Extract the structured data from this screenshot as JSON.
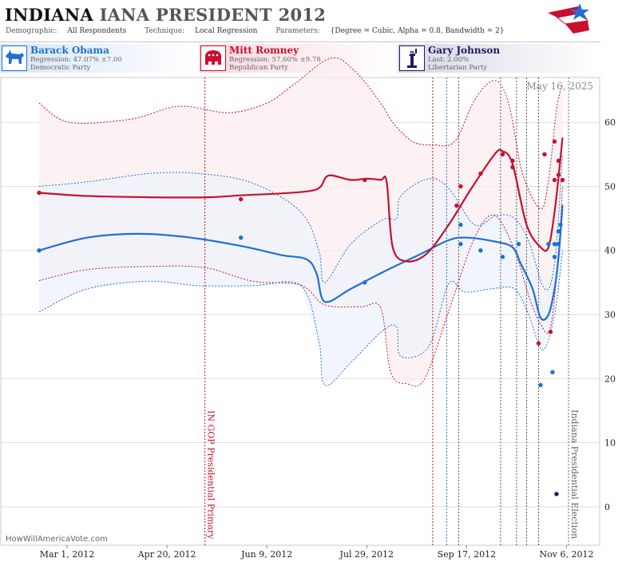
{
  "header": {
    "title_state": "INDIANA",
    "title_race": "IANA PRESIDENT 2012",
    "demographic_label": "Demographic:",
    "demographic_value": "All Respondents",
    "technique_label": "Technique:",
    "technique_value": "Local Regression",
    "parameters_label": "Parameters:",
    "parameters_value": "{Degree = Cubic, Alpha = 0.8, Bandwidth = 2}"
  },
  "candidates": [
    {
      "name": "Barack Obama",
      "line1": "Regression: 47.07% ±7.00",
      "line2": "Democratic Party",
      "color": "#1f6fd6",
      "icon": "donkey-icon"
    },
    {
      "name": "Mitt Romney",
      "line1": "Regression: 57.60% ±9.78",
      "line2": "Republican Party",
      "color": "#c8102e",
      "icon": "elephant-icon"
    },
    {
      "name": "Gary Johnson",
      "line1": "Last: 2.00%",
      "line2": "Libertarian Party",
      "color": "#1b1b5e",
      "icon": "statue-of-liberty-icon"
    }
  ],
  "chart_data": {
    "type": "line",
    "date_label": "May 16, 2025",
    "watermark": "HowWillAmericaVote.com",
    "x_ticks": [
      "Mar 1, 2012",
      "Apr 20, 2012",
      "Jun 9, 2012",
      "Jul 29, 2012",
      "Sep 17, 2012",
      "Nov 6, 2012"
    ],
    "x_range": [
      "2012-02-01",
      "2012-11-12"
    ],
    "y_ticks": [
      0,
      10,
      20,
      30,
      40,
      50,
      60
    ],
    "ylim": [
      -6,
      67
    ],
    "grid": true,
    "annotations": [
      {
        "date": "2012-05-08",
        "text": "IN GOP Presidential Primary",
        "color": "#c8102e"
      },
      {
        "date": "2012-11-06",
        "text": "Indiana Presidential Election",
        "color": "#666666"
      }
    ],
    "event_lines": [
      {
        "date": "2012-08-30",
        "color": "#c8102e"
      },
      {
        "date": "2012-09-06",
        "color": "#1f6fd6"
      },
      {
        "date": "2012-09-12",
        "color": "#555555"
      },
      {
        "date": "2012-10-03",
        "color": "#555555"
      },
      {
        "date": "2012-10-11",
        "color": "#555555"
      },
      {
        "date": "2012-10-16",
        "color": "#555555"
      },
      {
        "date": "2012-10-22",
        "color": "#555555"
      }
    ],
    "series": [
      {
        "name": "Barack Obama",
        "color": "#1f6fd6",
        "fill": "#eef3fb",
        "points": [
          [
            "2012-02-15",
            40
          ],
          [
            "2012-05-26",
            42
          ],
          [
            "2012-07-27",
            35
          ],
          [
            "2012-09-13",
            44
          ],
          [
            "2012-09-13",
            41
          ],
          [
            "2012-09-23",
            40
          ],
          [
            "2012-10-04",
            39
          ],
          [
            "2012-10-12",
            41
          ],
          [
            "2012-10-23",
            19
          ],
          [
            "2012-10-27",
            41
          ],
          [
            "2012-10-29",
            21
          ],
          [
            "2012-10-30",
            39
          ],
          [
            "2012-10-30",
            41
          ],
          [
            "2012-11-01",
            41
          ],
          [
            "2012-11-01",
            43
          ],
          [
            "2012-11-02",
            44
          ]
        ],
        "fit": [
          [
            "2012-02-15",
            40
          ],
          [
            "2012-03-10",
            42
          ],
          [
            "2012-04-05",
            42.6
          ],
          [
            "2012-05-01",
            42
          ],
          [
            "2012-05-26",
            40.7
          ],
          [
            "2012-06-15",
            39.3
          ],
          [
            "2012-06-28",
            38.6
          ],
          [
            "2012-07-03",
            36.3
          ],
          [
            "2012-07-07",
            32
          ],
          [
            "2012-07-20",
            34
          ],
          [
            "2012-08-05",
            36.6
          ],
          [
            "2012-08-23",
            39.3
          ],
          [
            "2012-09-07",
            41.6
          ],
          [
            "2012-09-16",
            42
          ],
          [
            "2012-09-30",
            41.4
          ],
          [
            "2012-10-09",
            40.5
          ],
          [
            "2012-10-13",
            38
          ],
          [
            "2012-10-19",
            34
          ],
          [
            "2012-10-23",
            29.5
          ],
          [
            "2012-10-27",
            30
          ],
          [
            "2012-10-30",
            34
          ],
          [
            "2012-11-01",
            39
          ],
          [
            "2012-11-03",
            47.1
          ]
        ],
        "upper": [
          [
            "2012-02-15",
            50
          ],
          [
            "2012-03-10",
            50.7
          ],
          [
            "2012-04-10",
            52
          ],
          [
            "2012-05-05",
            52
          ],
          [
            "2012-06-01",
            50.5
          ],
          [
            "2012-06-25",
            46
          ],
          [
            "2012-07-04",
            40
          ],
          [
            "2012-07-07",
            35
          ],
          [
            "2012-07-20",
            41
          ],
          [
            "2012-08-05",
            44.8
          ],
          [
            "2012-08-12",
            45
          ],
          [
            "2012-08-14",
            48.5
          ],
          [
            "2012-08-28",
            51.2
          ],
          [
            "2012-09-07",
            49.7
          ],
          [
            "2012-09-20",
            44
          ],
          [
            "2012-10-01",
            45.5
          ],
          [
            "2012-10-10",
            45
          ],
          [
            "2012-10-17",
            41.5
          ],
          [
            "2012-10-25",
            34
          ],
          [
            "2012-10-30",
            38
          ],
          [
            "2012-11-03",
            55
          ]
        ],
        "lower": [
          [
            "2012-02-15",
            30.4
          ],
          [
            "2012-03-10",
            34
          ],
          [
            "2012-04-10",
            35.2
          ],
          [
            "2012-05-05",
            34.5
          ],
          [
            "2012-06-01",
            34.5
          ],
          [
            "2012-06-25",
            34.5
          ],
          [
            "2012-07-04",
            26
          ],
          [
            "2012-07-07",
            19
          ],
          [
            "2012-07-20",
            22.5
          ],
          [
            "2012-08-05",
            27.5
          ],
          [
            "2012-08-12",
            28
          ],
          [
            "2012-08-14",
            23.5
          ],
          [
            "2012-08-28",
            25
          ],
          [
            "2012-09-07",
            34.8
          ],
          [
            "2012-09-15",
            33.5
          ],
          [
            "2012-09-28",
            34
          ],
          [
            "2012-10-10",
            34
          ],
          [
            "2012-10-17",
            30
          ],
          [
            "2012-10-24",
            24.5
          ],
          [
            "2012-10-30",
            30
          ],
          [
            "2012-11-03",
            40
          ]
        ]
      },
      {
        "name": "Mitt Romney",
        "color": "#c8102e",
        "fill": "#fbeef0",
        "points": [
          [
            "2012-02-15",
            49
          ],
          [
            "2012-05-26",
            48
          ],
          [
            "2012-07-27",
            51
          ],
          [
            "2012-09-11",
            47
          ],
          [
            "2012-09-13",
            50
          ],
          [
            "2012-09-23",
            52
          ],
          [
            "2012-10-04",
            55
          ],
          [
            "2012-10-09",
            54
          ],
          [
            "2012-10-09",
            53
          ],
          [
            "2012-10-22",
            25.5
          ],
          [
            "2012-10-25",
            55
          ],
          [
            "2012-10-28",
            27.3
          ],
          [
            "2012-10-30",
            51
          ],
          [
            "2012-10-30",
            57
          ],
          [
            "2012-11-01",
            51.8
          ],
          [
            "2012-11-01",
            54
          ],
          [
            "2012-11-03",
            51
          ]
        ],
        "fit": [
          [
            "2012-02-15",
            49
          ],
          [
            "2012-03-10",
            48.5
          ],
          [
            "2012-04-10",
            48.3
          ],
          [
            "2012-05-10",
            48.3
          ],
          [
            "2012-05-26",
            48.6
          ],
          [
            "2012-06-15",
            48.9
          ],
          [
            "2012-06-30",
            49.3
          ],
          [
            "2012-07-05",
            50
          ],
          [
            "2012-07-09",
            51.7
          ],
          [
            "2012-07-20",
            51
          ],
          [
            "2012-07-28",
            51.2
          ],
          [
            "2012-08-04",
            51
          ],
          [
            "2012-08-07",
            50.7
          ],
          [
            "2012-08-10",
            40.5
          ],
          [
            "2012-08-17",
            38.3
          ],
          [
            "2012-08-27",
            39.5
          ],
          [
            "2012-09-07",
            44
          ],
          [
            "2012-09-18",
            49.5
          ],
          [
            "2012-09-30",
            55
          ],
          [
            "2012-10-04",
            55.5
          ],
          [
            "2012-10-09",
            53.5
          ],
          [
            "2012-10-16",
            44
          ],
          [
            "2012-10-23",
            40.5
          ],
          [
            "2012-10-27",
            40.5
          ],
          [
            "2012-10-30",
            46
          ],
          [
            "2012-11-01",
            51.5
          ],
          [
            "2012-11-03",
            57.6
          ]
        ],
        "upper": [
          [
            "2012-02-15",
            63
          ],
          [
            "2012-03-01",
            60
          ],
          [
            "2012-04-01",
            60.5
          ],
          [
            "2012-04-25",
            62.5
          ],
          [
            "2012-05-20",
            61.5
          ],
          [
            "2012-06-08",
            63
          ],
          [
            "2012-06-22",
            66
          ],
          [
            "2012-07-10",
            70
          ],
          [
            "2012-07-22",
            68
          ],
          [
            "2012-08-04",
            63
          ],
          [
            "2012-08-10",
            60
          ],
          [
            "2012-08-20",
            57
          ],
          [
            "2012-08-30",
            56.5
          ],
          [
            "2012-09-10",
            57
          ],
          [
            "2012-09-20",
            63.5
          ],
          [
            "2012-09-30",
            66.5
          ],
          [
            "2012-10-07",
            63
          ],
          [
            "2012-10-14",
            52
          ],
          [
            "2012-10-23",
            46.5
          ],
          [
            "2012-10-27",
            51
          ],
          [
            "2012-10-31",
            62
          ],
          [
            "2012-11-03",
            66
          ]
        ],
        "lower": [
          [
            "2012-02-15",
            35.3
          ],
          [
            "2012-03-10",
            37
          ],
          [
            "2012-04-10",
            37.5
          ],
          [
            "2012-05-08",
            37.3
          ],
          [
            "2012-06-01",
            35.2
          ],
          [
            "2012-06-25",
            34.6
          ],
          [
            "2012-07-07",
            31.5
          ],
          [
            "2012-07-25",
            31.2
          ],
          [
            "2012-08-04",
            31
          ],
          [
            "2012-08-09",
            21
          ],
          [
            "2012-08-17",
            19.2
          ],
          [
            "2012-08-26",
            20
          ],
          [
            "2012-09-07",
            30.5
          ],
          [
            "2012-09-20",
            42
          ],
          [
            "2012-09-30",
            45.5
          ],
          [
            "2012-10-10",
            40
          ],
          [
            "2012-10-17",
            33
          ],
          [
            "2012-10-23",
            28.5
          ],
          [
            "2012-10-28",
            28
          ],
          [
            "2012-11-01",
            40
          ],
          [
            "2012-11-03",
            50
          ]
        ]
      },
      {
        "name": "Gary Johnson",
        "color": "#1b1b5e",
        "points": [
          [
            "2012-10-31",
            2
          ]
        ]
      }
    ]
  }
}
